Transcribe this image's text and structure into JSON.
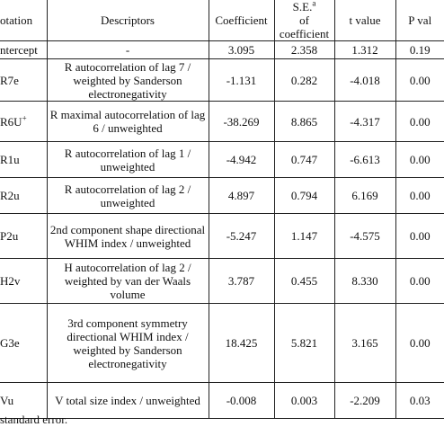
{
  "table": {
    "header": [
      "otation",
      "Descriptors",
      "Coefficient",
      {
        "text": "S.E.",
        "sup": "a",
        "rest": "of coefficient"
      },
      "t value",
      "P val"
    ],
    "rows": [
      [
        "ntercept",
        "-",
        "3.095",
        "2.358",
        "1.312",
        "0.19"
      ],
      [
        "R7e",
        "R autocorrelation of lag 7 / weighted by Sanderson electronegativity",
        "-1.131",
        "0.282",
        "-4.018",
        "0.00"
      ],
      [
        {
          "text": "R6U",
          "sup": "+"
        },
        "R maximal autocorrelation of lag 6 / unweighted",
        "-38.269",
        "8.865",
        "-4.317",
        "0.00"
      ],
      [
        "R1u",
        "R autocorrelation of lag 1 / unweighted",
        "-4.942",
        "0.747",
        "-6.613",
        "0.00"
      ],
      [
        "R2u",
        "R autocorrelation of lag 2 / unweighted",
        "4.897",
        "0.794",
        "6.169",
        "0.00"
      ],
      [
        "P2u",
        "2nd component shape directional WHIM index / unweighted",
        "-5.247",
        "1.147",
        "-4.575",
        "0.00"
      ],
      [
        "H2v",
        "H autocorrelation of lag 2 / weighted by van der Waals volume",
        "3.787",
        "0.455",
        "8.330",
        "0.00"
      ],
      [
        "G3e",
        "3rd component symmetry directional WHIM index / weighted by Sanderson electronegativity",
        "18.425",
        "5.821",
        "3.165",
        "0.00"
      ],
      [
        "Vu",
        "V total size index / unweighted",
        "-0.008",
        "0.003",
        "-2.209",
        "0.03"
      ]
    ]
  },
  "footnote": "standard error."
}
